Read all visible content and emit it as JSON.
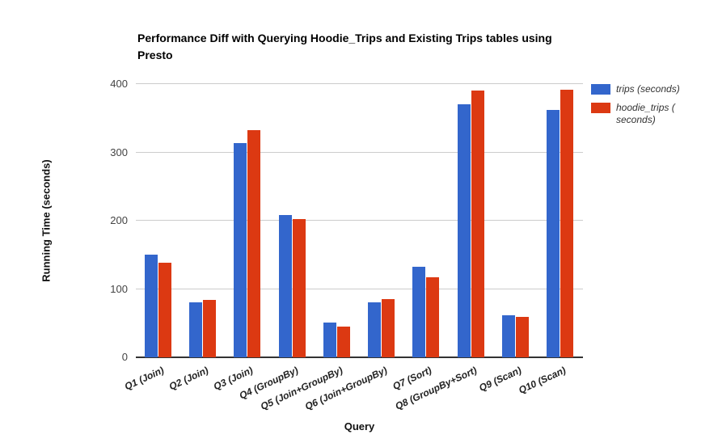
{
  "chart_data": {
    "type": "bar",
    "title": "Performance Diff with Querying Hoodie_Trips and Existing Trips tables using Presto",
    "xlabel": "Query",
    "ylabel": "Running Time (seconds)",
    "ylim": [
      0,
      400
    ],
    "yticks": [
      0,
      100,
      200,
      300,
      400
    ],
    "grid": true,
    "legend_position": "right",
    "categories": [
      "Q1 (Join)",
      "Q2 (Join)",
      "Q3 (Join)",
      "Q4 (GroupBy)",
      "Q5 (Join+GroupBy)",
      "Q6 (Join+GroupBy)",
      "Q7 (Sort)",
      "Q8 (GroupBy+Sort)",
      "Q9 (Scan)",
      "Q10 (Scan)"
    ],
    "series": [
      {
        "name": "trips (seconds)",
        "color": "#3366CC",
        "legend_lines": [
          "trips (seconds)"
        ],
        "values": [
          150,
          81,
          314,
          208,
          51,
          81,
          132,
          370,
          61,
          362
        ]
      },
      {
        "name": "hoodie_trips (seconds)",
        "color": "#DC3912",
        "legend_lines": [
          "hoodie_trips (",
          "seconds)"
        ],
        "values": [
          139,
          84,
          333,
          202,
          45,
          85,
          117,
          390,
          59,
          392
        ]
      }
    ]
  }
}
